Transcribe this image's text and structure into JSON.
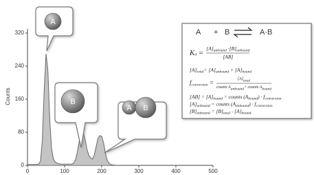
{
  "chart_data": {
    "type": "area",
    "ylabel": "Counts",
    "color": "#b0b0b0",
    "xlim": [
      0,
      500
    ],
    "ylim": [
      0,
      330
    ],
    "xticks": [
      0,
      100,
      200,
      300,
      400,
      500
    ],
    "yticks": [
      0,
      80,
      160,
      240,
      320
    ],
    "x": [
      0,
      10,
      20,
      30,
      35,
      40,
      45,
      50,
      55,
      60,
      65,
      70,
      75,
      80,
      90,
      100,
      110,
      120,
      125,
      130,
      135,
      140,
      145,
      150,
      155,
      160,
      165,
      170,
      175,
      180,
      185,
      190,
      195,
      200,
      205,
      210,
      215,
      220,
      225,
      230,
      240
    ],
    "values": [
      2,
      2,
      2,
      3,
      10,
      60,
      180,
      270,
      230,
      110,
      40,
      15,
      8,
      5,
      3,
      3,
      3,
      3,
      6,
      15,
      35,
      60,
      78,
      80,
      65,
      40,
      25,
      18,
      15,
      25,
      45,
      65,
      72,
      70,
      55,
      30,
      12,
      5,
      2,
      1,
      0
    ]
  },
  "callouts": [
    {
      "labels": [
        "A"
      ]
    },
    {
      "labels": [
        "B"
      ]
    },
    {
      "labels": [
        "A",
        "B"
      ]
    }
  ],
  "equations": {
    "reaction": [
      "A",
      "+",
      "B",
      "A·B"
    ],
    "kd": {
      "lhs": [
        {
          "base": "K",
          "sub": "d"
        },
        " ="
      ],
      "num": [
        {
          "base": "[A]",
          "sub": "unbound"
        },
        " ·",
        {
          "base": "[B]",
          "sub": "unbound"
        }
      ],
      "den": [
        "[AB]"
      ]
    },
    "total": [
      {
        "base": "[A]",
        "sub": "total"
      },
      "= ",
      {
        "base": "[A]",
        "sub": "unbound"
      },
      " + ",
      {
        "base": "[A]",
        "sub": "bound"
      }
    ],
    "fconv": {
      "lhs": [
        {
          "base": "f",
          "sub": "conversion"
        },
        " ="
      ],
      "num": [
        {
          "base": "[A]",
          "sub": "total"
        }
      ],
      "den": [
        {
          "base": "counts A",
          "sub": "unbound"
        },
        "+ ",
        {
          "base": "counts A",
          "sub": "bound"
        }
      ]
    },
    "lines": [
      [
        "[AB] = ",
        {
          "base": "[A]",
          "sub": "bound"
        },
        " = counts (",
        {
          "base": "A",
          "sub": "bound"
        },
        ") · ",
        {
          "base": "f",
          "sub": "conversion"
        }
      ],
      [
        {
          "base": "[A]",
          "sub": "unbound"
        },
        " = counts (",
        {
          "base": "A",
          "sub": "unbound"
        },
        ") · ",
        {
          "base": "f",
          "sub": "conversion"
        }
      ],
      [
        {
          "base": "[B]",
          "sub": "unbound"
        },
        " = ",
        {
          "base": "[B]",
          "sub": "total"
        },
        " - ",
        {
          "base": "[A]",
          "sub": "bound"
        }
      ]
    ]
  }
}
